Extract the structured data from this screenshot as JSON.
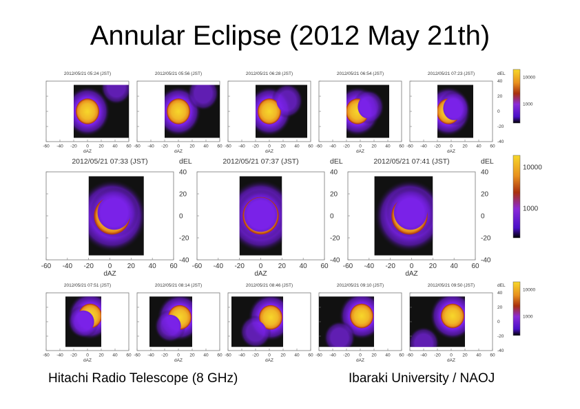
{
  "title": "Annular Eclipse (2012 May 21th)",
  "footer_left": "Hitachi Radio Telescope (8 GHz)",
  "footer_right": "Ibaraki University / NAOJ",
  "chart_data": {
    "type": "heatmap",
    "xlabel": "dAZ",
    "ylabel": "dEL",
    "xlim": [
      -60,
      60
    ],
    "ylim": [
      -40,
      40
    ],
    "xticks": [
      "-60",
      "-40",
      "-20",
      "0",
      "20",
      "40",
      "60"
    ],
    "yticks": [
      "40",
      "20",
      "0",
      "-20",
      "-40"
    ],
    "colorbar": {
      "scale": "log",
      "ticks": [
        "10000",
        "1000"
      ]
    },
    "colors": {
      "peak": "#f7d72a",
      "high": "#e8901e",
      "mid": "#a8300e",
      "low": "#7a22e8",
      "floor": "#111111"
    },
    "sun_radius": 17,
    "rows": [
      {
        "row": "top",
        "panels": [
          {
            "title": "2012/05/21 05:24 (JST)",
            "scan_daz": [
              -20,
              60
            ],
            "scan_del": [
              -35,
              35
            ],
            "sun": [
              0,
              0
            ],
            "moon": [
              42,
              32
            ]
          },
          {
            "title": "2012/05/21 05:56 (JST)",
            "scan_daz": [
              -20,
              60
            ],
            "scan_del": [
              -35,
              35
            ],
            "sun": [
              0,
              0
            ],
            "moon": [
              36,
              24
            ]
          },
          {
            "title": "2012/05/21 06:28 (JST)",
            "scan_daz": [
              -20,
              55
            ],
            "scan_del": [
              -35,
              35
            ],
            "sun": [
              0,
              0
            ],
            "moon": [
              26,
              14
            ]
          },
          {
            "title": "2012/05/21 06:54 (JST)",
            "scan_daz": [
              -20,
              42
            ],
            "scan_del": [
              -35,
              35
            ],
            "sun": [
              -4,
              0
            ],
            "moon": [
              12,
              6
            ]
          },
          {
            "title": "2012/05/21 07:23 (JST)",
            "scan_daz": [
              -20,
              32
            ],
            "scan_del": [
              -35,
              35
            ],
            "sun": [
              -4,
              0
            ],
            "moon": [
              4,
              4
            ]
          }
        ]
      },
      {
        "row": "middle",
        "panels": [
          {
            "title": "2012/05/21 07:33 (JST)",
            "scan_daz": [
              -20,
              32
            ],
            "scan_del": [
              -36,
              36
            ],
            "sun": [
              2,
              0
            ],
            "moon": [
              4,
              3
            ]
          },
          {
            "title": "2012/05/21 07:37 (JST)",
            "scan_daz": [
              -20,
              20
            ],
            "scan_del": [
              -36,
              36
            ],
            "sun": [
              0,
              0
            ],
            "moon": [
              0,
              1
            ]
          },
          {
            "title": "2012/05/21 07:41 (JST)",
            "scan_daz": [
              -35,
              20
            ],
            "scan_del": [
              -36,
              36
            ],
            "sun": [
              -2,
              0
            ],
            "moon": [
              -1,
              3
            ]
          }
        ]
      },
      {
        "row": "bottom",
        "panels": [
          {
            "title": "2012/05/21 07:51 (JST)",
            "scan_daz": [
              -32,
              20
            ],
            "scan_del": [
              -35,
              35
            ],
            "sun": [
              4,
              8
            ],
            "moon": [
              -6,
              0
            ]
          },
          {
            "title": "2012/05/21 08:14 (JST)",
            "scan_daz": [
              -42,
              20
            ],
            "scan_del": [
              -35,
              35
            ],
            "sun": [
              2,
              6
            ],
            "moon": [
              -12,
              -6
            ]
          },
          {
            "title": "2012/05/21 08:46 (JST)",
            "scan_daz": [
              -55,
              20
            ],
            "scan_del": [
              -35,
              35
            ],
            "sun": [
              2,
              6
            ],
            "moon": [
              -20,
              -14
            ]
          },
          {
            "title": "2012/05/21 09:10 (JST)",
            "scan_daz": [
              -60,
              20
            ],
            "scan_del": [
              -35,
              35
            ],
            "sun": [
              2,
              8
            ],
            "moon": [
              -30,
              -22
            ]
          },
          {
            "title": "2012/05/21 09:50 (JST)",
            "scan_daz": [
              -60,
              20
            ],
            "scan_del": [
              -35,
              35
            ],
            "sun": [
              2,
              8
            ],
            "moon": [
              -40,
              -30
            ]
          }
        ]
      }
    ]
  }
}
